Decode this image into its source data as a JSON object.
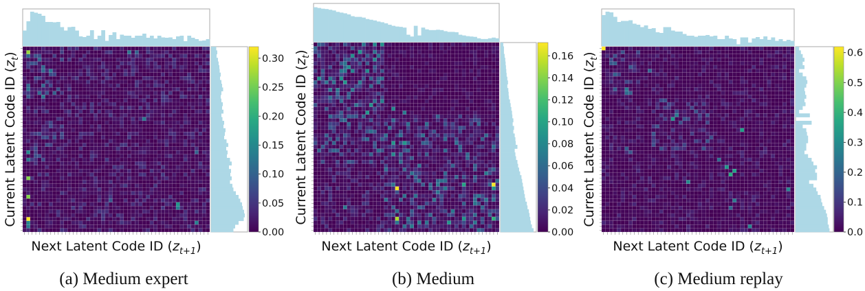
{
  "chart_data": [
    {
      "type": "heatmap",
      "caption": "(a) Medium expert",
      "xlabel": {
        "text": "Next Latent Code ID (",
        "var": "z",
        "sub": "t+1",
        "close": ")"
      },
      "ylabel": {
        "text": "Current Latent Code ID (",
        "var": "z",
        "sub": "t",
        "close": ")"
      },
      "grid_size": 50,
      "colorbar": {
        "vmin": 0,
        "vmax": 0.32,
        "ticks": [
          "0.00",
          "0.05",
          "0.10",
          "0.15",
          "0.20",
          "0.25",
          "0.30"
        ]
      },
      "background_level": 0.03,
      "bright_blocks": [
        [
          1,
          13,
          1,
          10,
          0.07
        ],
        [
          20,
          30,
          1,
          10,
          0.045
        ]
      ],
      "hotspots": [
        [
          1,
          1,
          0.27
        ],
        [
          35,
          1,
          0.26
        ],
        [
          40,
          1,
          0.26
        ],
        [
          46,
          1,
          0.32
        ],
        [
          28,
          1,
          0.15
        ],
        [
          30,
          1,
          0.12
        ],
        [
          47,
          1,
          0.15
        ],
        [
          48,
          1,
          0.13
        ],
        [
          1,
          28,
          0.13
        ],
        [
          1,
          30,
          0.1
        ],
        [
          42,
          41,
          0.17
        ],
        [
          43,
          41,
          0.14
        ],
        [
          47,
          46,
          0.14
        ],
        [
          19,
          32,
          0.13
        ],
        [
          28,
          46,
          0.1
        ],
        [
          41,
          23,
          0.09
        ]
      ],
      "top_histogram": [
        0.45,
        0.72,
        1.0,
        0.97,
        0.94,
        0.88,
        0.7,
        0.7,
        0.69,
        0.7,
        0.55,
        0.45,
        0.55,
        0.56,
        0.45,
        0.28,
        0.26,
        0.3,
        0.46,
        0.2,
        0.3,
        0.46,
        0.15,
        0.32,
        0.4,
        0.2,
        0.33,
        0.3,
        0.3,
        0.24,
        0.3,
        0.3,
        0.36,
        0.24,
        0.3,
        0.22,
        0.3,
        0.25,
        0.24,
        0.25,
        0.2,
        0.28,
        0.3,
        0.14,
        0.3,
        0.24,
        0.2,
        0.15,
        0.16,
        0.2
      ],
      "right_histogram": [
        0.15,
        0.18,
        0.16,
        0.2,
        0.22,
        0.24,
        0.25,
        0.28,
        0.26,
        0.3,
        0.32,
        0.35,
        0.3,
        0.28,
        0.3,
        0.34,
        0.32,
        0.36,
        0.3,
        0.33,
        0.38,
        0.36,
        0.42,
        0.4,
        0.38,
        0.45,
        0.5,
        0.44,
        0.48,
        0.46,
        0.55,
        0.6,
        0.52,
        0.58,
        0.56,
        0.6,
        0.55,
        0.62,
        0.65,
        0.72,
        0.8,
        0.85,
        0.9,
        0.92,
        0.96,
        0.98,
        0.95,
        0.8,
        0.7,
        0.65
      ]
    },
    {
      "type": "heatmap",
      "caption": "(b) Medium",
      "xlabel": {
        "text": "Next Latent Code ID (",
        "var": "z",
        "sub": "t+1",
        "close": ")"
      },
      "ylabel": {
        "text": "Current Latent Code ID (",
        "var": "z",
        "sub": "t",
        "close": ")"
      },
      "grid_size": 50,
      "colorbar": {
        "vmin": 0,
        "vmax": 0.172,
        "ticks": [
          "0.00",
          "0.02",
          "0.04",
          "0.06",
          "0.08",
          "0.10",
          "0.12",
          "0.14",
          "0.16"
        ]
      },
      "background_level": 0.012,
      "bright_blocks": [
        [
          0,
          18,
          0,
          18,
          0.05
        ],
        [
          19,
          31,
          0,
          18,
          0.035
        ],
        [
          19,
          31,
          19,
          49,
          0.035
        ],
        [
          32,
          49,
          19,
          49,
          0.04
        ],
        [
          0,
          18,
          19,
          49,
          0.008
        ],
        [
          32,
          49,
          0,
          18,
          0.015
        ]
      ],
      "hotspots": [
        [
          37,
          48,
          0.17
        ],
        [
          38,
          22,
          0.17
        ],
        [
          46,
          22,
          0.15
        ],
        [
          37,
          40,
          0.1
        ],
        [
          46,
          48,
          0.11
        ],
        [
          46,
          40,
          0.09
        ],
        [
          47,
          36,
          0.09
        ],
        [
          38,
          48,
          0.09
        ],
        [
          26,
          21,
          0.09
        ],
        [
          26,
          24,
          0.09
        ],
        [
          29,
          21,
          0.08
        ],
        [
          17,
          21,
          0.08
        ],
        [
          18,
          24,
          0.07
        ],
        [
          43,
          8,
          0.07
        ]
      ],
      "top_histogram": [
        0.97,
        0.95,
        0.93,
        0.92,
        0.9,
        0.88,
        0.84,
        0.82,
        0.8,
        0.77,
        0.72,
        0.7,
        0.7,
        0.68,
        0.64,
        0.62,
        0.6,
        0.57,
        0.55,
        0.52,
        0.48,
        0.45,
        0.43,
        0.42,
        0.4,
        0.2,
        0.15,
        0.45,
        0.18,
        0.4,
        0.35,
        0.33,
        0.33,
        0.34,
        0.33,
        0.3,
        0.28,
        0.28,
        0.27,
        0.2,
        0.18,
        0.16,
        0.15,
        0.14,
        0.1,
        0.08,
        0.08,
        0.1,
        0.12,
        0.1
      ],
      "right_histogram": [
        0.08,
        0.1,
        0.1,
        0.12,
        0.14,
        0.15,
        0.16,
        0.17,
        0.18,
        0.2,
        0.22,
        0.2,
        0.23,
        0.24,
        0.25,
        0.28,
        0.3,
        0.32,
        0.34,
        0.35,
        0.38,
        0.36,
        0.4,
        0.38,
        0.42,
        0.44,
        0.45,
        0.5,
        0.42,
        0.44,
        0.46,
        0.5,
        0.52,
        0.55,
        0.58,
        0.62,
        0.64,
        0.66,
        0.68,
        0.7,
        0.72,
        0.74,
        0.78,
        0.8,
        0.84,
        0.86,
        0.88,
        0.9,
        0.93,
        0.98
      ]
    },
    {
      "type": "heatmap",
      "caption": "(c) Medium replay",
      "xlabel": {
        "text": "Next Latent Code ID (",
        "var": "z",
        "sub": "t+1",
        "close": ")"
      },
      "ylabel": {
        "text": "Current Latent Code ID (",
        "var": "z",
        "sub": "t",
        "close": ")"
      },
      "grid_size": 50,
      "colorbar": {
        "vmin": 0,
        "vmax": 0.62,
        "ticks": [
          "0.0",
          "0.1",
          "0.2",
          "0.3",
          "0.4",
          "0.5",
          "0.6"
        ]
      },
      "background_level": 0.04,
      "bright_blocks": [
        [
          1,
          12,
          1,
          9,
          0.12
        ],
        [
          14,
          27,
          13,
          28,
          0.09
        ]
      ],
      "hotspots": [
        [
          0,
          0,
          0.62
        ],
        [
          34,
          33,
          0.38
        ],
        [
          33,
          34,
          0.35
        ],
        [
          32,
          32,
          0.33
        ],
        [
          22,
          36,
          0.35
        ],
        [
          36,
          22,
          0.3
        ],
        [
          38,
          48,
          0.28
        ],
        [
          48,
          38,
          0.28
        ],
        [
          19,
          18,
          0.32
        ],
        [
          18,
          19,
          0.25
        ],
        [
          11,
          6,
          0.25
        ],
        [
          12,
          6,
          0.22
        ],
        [
          6,
          12,
          0.2
        ],
        [
          30,
          30,
          0.22
        ],
        [
          41,
          34,
          0.25
        ],
        [
          43,
          33,
          0.2
        ],
        [
          27,
          6,
          0.18
        ],
        [
          28,
          7,
          0.16
        ]
      ],
      "top_histogram": [
        0.9,
        1.0,
        0.98,
        0.85,
        0.7,
        0.73,
        0.73,
        0.75,
        0.65,
        0.62,
        0.55,
        0.6,
        0.5,
        0.52,
        0.4,
        0.38,
        0.55,
        0.55,
        0.45,
        0.42,
        0.42,
        0.35,
        0.3,
        0.3,
        0.27,
        0.3,
        0.3,
        0.32,
        0.28,
        0.3,
        0.2,
        0.2,
        0.3,
        0.22,
        0.2,
        0.05,
        0.25,
        0.25,
        0.1,
        0.22,
        0.26,
        0.2,
        0.28,
        0.18,
        0.25,
        0.15,
        0.2,
        0.14,
        0.18,
        0.15
      ],
      "right_histogram": [
        0.1,
        0.15,
        0.2,
        0.25,
        0.2,
        0.25,
        0.1,
        0.2,
        0.3,
        0.33,
        0.3,
        0.25,
        0.27,
        0.3,
        0.25,
        0.28,
        0.2,
        0.1,
        0.4,
        0.0,
        0.45,
        0.2,
        0.3,
        0.32,
        0.35,
        0.35,
        0.3,
        0.3,
        0.25,
        0.35,
        0.45,
        0.5,
        0.6,
        0.55,
        0.6,
        0.6,
        0.38,
        0.5,
        0.58,
        0.62,
        0.7,
        0.72,
        0.75,
        0.8,
        0.85,
        0.88,
        0.9,
        0.9,
        0.93,
        0.95
      ]
    }
  ]
}
